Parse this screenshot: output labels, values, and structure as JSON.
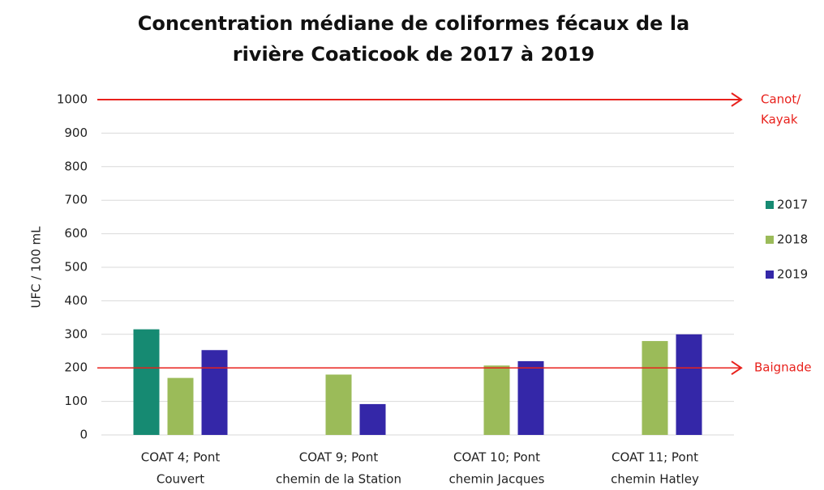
{
  "chart_data": {
    "type": "bar",
    "title": [
      "Concentration médiane de coliformes fécaux de la",
      "rivière Coaticook de 2017 à 2019"
    ],
    "y_label": "UFC / 100 mL",
    "categories": [
      [
        "COAT 4; Pont",
        "Couvert"
      ],
      [
        "COAT 9; Pont",
        "chemin de la Station"
      ],
      [
        "COAT 10; Pont",
        "chemin Jacques"
      ],
      [
        "COAT 11; Pont",
        "chemin Hatley"
      ]
    ],
    "series": [
      {
        "name": "2017",
        "color": "#168a72",
        "values": [
          315,
          null,
          null,
          null
        ]
      },
      {
        "name": "2018",
        "color": "#9bbb59",
        "values": [
          170,
          180,
          207,
          280
        ]
      },
      {
        "name": "2019",
        "color": "#3427a8",
        "values": [
          253,
          92,
          220,
          300
        ]
      }
    ],
    "ylim": [
      0,
      1000
    ],
    "yticks": [
      0,
      100,
      200,
      300,
      400,
      500,
      600,
      700,
      800,
      900,
      1000
    ],
    "grid": true,
    "legend": "right",
    "reference_lines": [
      {
        "value": 1000,
        "label": [
          "Canot/",
          "Kayak"
        ],
        "color": "#e8211c"
      },
      {
        "value": 200,
        "label": [
          "Baignade"
        ],
        "color": "#e8211c"
      }
    ]
  }
}
